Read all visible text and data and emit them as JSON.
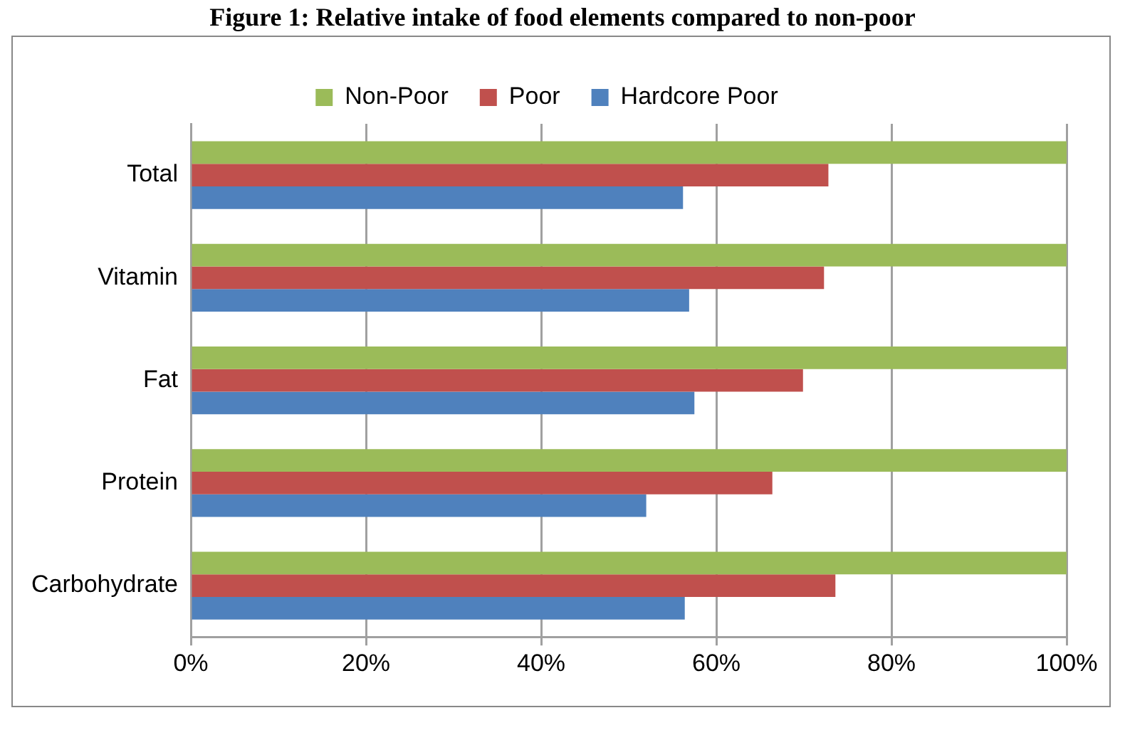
{
  "chart_data": {
    "type": "bar",
    "orientation": "horizontal",
    "title": "Figure 1: Relative intake of food elements compared to non-poor",
    "categories": [
      "Total",
      "Vitamin",
      "Fat",
      "Protein",
      "Carbohydrate"
    ],
    "series": [
      {
        "name": "Non-Poor",
        "color": "#9bbb59",
        "values": [
          100,
          100,
          100,
          100,
          100
        ]
      },
      {
        "name": "Poor",
        "color": "#c0504d",
        "values": [
          72.8,
          72.3,
          69.9,
          66.4,
          73.6
        ]
      },
      {
        "name": "Hardcore Poor",
        "color": "#4f81bd",
        "values": [
          56.2,
          56.9,
          57.5,
          52.0,
          56.4
        ]
      }
    ],
    "xlim": [
      0,
      100
    ],
    "xticks": [
      {
        "value": 0,
        "label": "0%"
      },
      {
        "value": 20,
        "label": "20%"
      },
      {
        "value": 40,
        "label": "40%"
      },
      {
        "value": 60,
        "label": "60%"
      },
      {
        "value": 80,
        "label": "80%"
      },
      {
        "value": 100,
        "label": "100%"
      }
    ],
    "grid": "x",
    "legend": "top"
  }
}
